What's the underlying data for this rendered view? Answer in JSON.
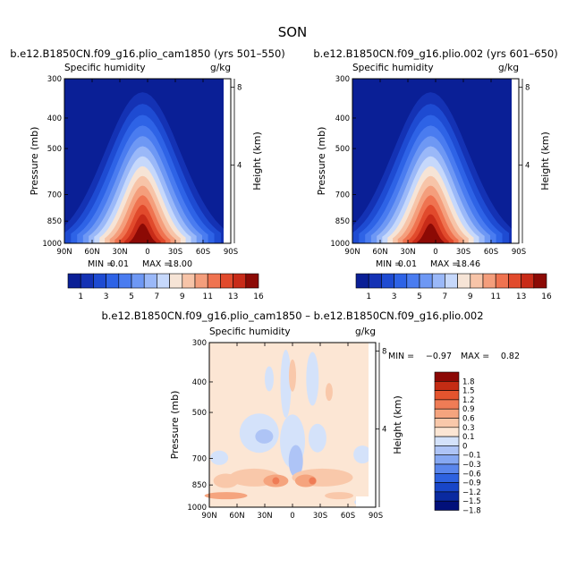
{
  "figure": {
    "title": "SON"
  },
  "colors": {
    "top_scale": [
      "#0a1f96",
      "#1432b4",
      "#1e4bd2",
      "#2e63e6",
      "#4a7cf0",
      "#6e98f4",
      "#9ab8f8",
      "#c6d8fb",
      "#f6e4d6",
      "#f7c4a8",
      "#f49e7c",
      "#ef7350",
      "#e14a2c",
      "#c82b18",
      "#8c0a05"
    ],
    "diff_scale": [
      "#02107a",
      "#0a2aa0",
      "#1846c8",
      "#2e62e0",
      "#5a86ec",
      "#86a8f2",
      "#aec4f6",
      "#d4e2fa",
      "#fce6d4",
      "#f9c8aa",
      "#f5a47e",
      "#ef7c56",
      "#e4542e",
      "#c42c14",
      "#8c0805"
    ],
    "background": "#ffffff"
  },
  "chart_data": [
    {
      "type": "heatmap",
      "title": "b.e12.B1850CN.f09_g16.plio_cam1850 (yrs 501–550)",
      "left_label": "Specific humidity",
      "right_label": "g/kg",
      "xlabel": "",
      "ylabel": "Pressure (mb)",
      "y2label": "Height (km)",
      "x_ticks": [
        "90N",
        "60N",
        "30N",
        "0",
        "30S",
        "60S",
        "90S"
      ],
      "y_ticks": [
        300,
        400,
        500,
        700,
        850,
        1000
      ],
      "y2_ticks": [
        4,
        8
      ],
      "x_range": [
        "90N",
        "90S"
      ],
      "y_range": [
        1000,
        300
      ],
      "min_label": "MIN =",
      "min_value": "0.01",
      "max_label": "MAX =",
      "max_value": "18.00",
      "peak": 18.0,
      "colorbar_labels": [
        "1",
        "3",
        "5",
        "7",
        "9",
        "11",
        "13",
        "16"
      ],
      "legend_position": "bottom"
    },
    {
      "type": "heatmap",
      "title": "b.e12.B1850CN.f09_g16.plio.002 (yrs 601–650)",
      "left_label": "Specific humidity",
      "right_label": "g/kg",
      "xlabel": "",
      "ylabel": "Pressure (mb)",
      "y2label": "Height (km)",
      "x_ticks": [
        "90N",
        "60N",
        "30N",
        "0",
        "30S",
        "60S",
        "90S"
      ],
      "y_ticks": [
        300,
        400,
        500,
        700,
        850,
        1000
      ],
      "y2_ticks": [
        4,
        8
      ],
      "x_range": [
        "90N",
        "90S"
      ],
      "y_range": [
        1000,
        300
      ],
      "min_label": "MIN =",
      "min_value": "0.01",
      "max_label": "MAX =",
      "max_value": "18.46",
      "peak": 18.46,
      "colorbar_labels": [
        "1",
        "3",
        "5",
        "7",
        "9",
        "11",
        "13",
        "16"
      ],
      "legend_position": "bottom"
    },
    {
      "type": "heatmap",
      "title": "b.e12.B1850CN.f09_g16.plio_cam1850 – b.e12.B1850CN.f09_g16.plio.002",
      "left_label": "Specific humidity",
      "right_label": "g/kg",
      "xlabel": "",
      "ylabel": "Pressure (mb)",
      "y2label": "Height (km)",
      "x_ticks": [
        "90N",
        "60N",
        "30N",
        "0",
        "30S",
        "60S",
        "90S"
      ],
      "y_ticks": [
        300,
        400,
        500,
        700,
        850,
        1000
      ],
      "y2_ticks": [
        4,
        8
      ],
      "x_range": [
        "90N",
        "90S"
      ],
      "y_range": [
        1000,
        300
      ],
      "min_label": "MIN =",
      "min_value": "−0.97",
      "max_label": "MAX =",
      "max_value": "0.82",
      "colorbar_labels": [
        "1.8",
        "1.5",
        "1.2",
        "0.9",
        "0.6",
        "0.3",
        "0.1",
        "0",
        "−0.1",
        "−0.3",
        "−0.6",
        "−0.9",
        "−1.2",
        "−1.5",
        "−1.8"
      ],
      "legend_position": "right"
    }
  ]
}
